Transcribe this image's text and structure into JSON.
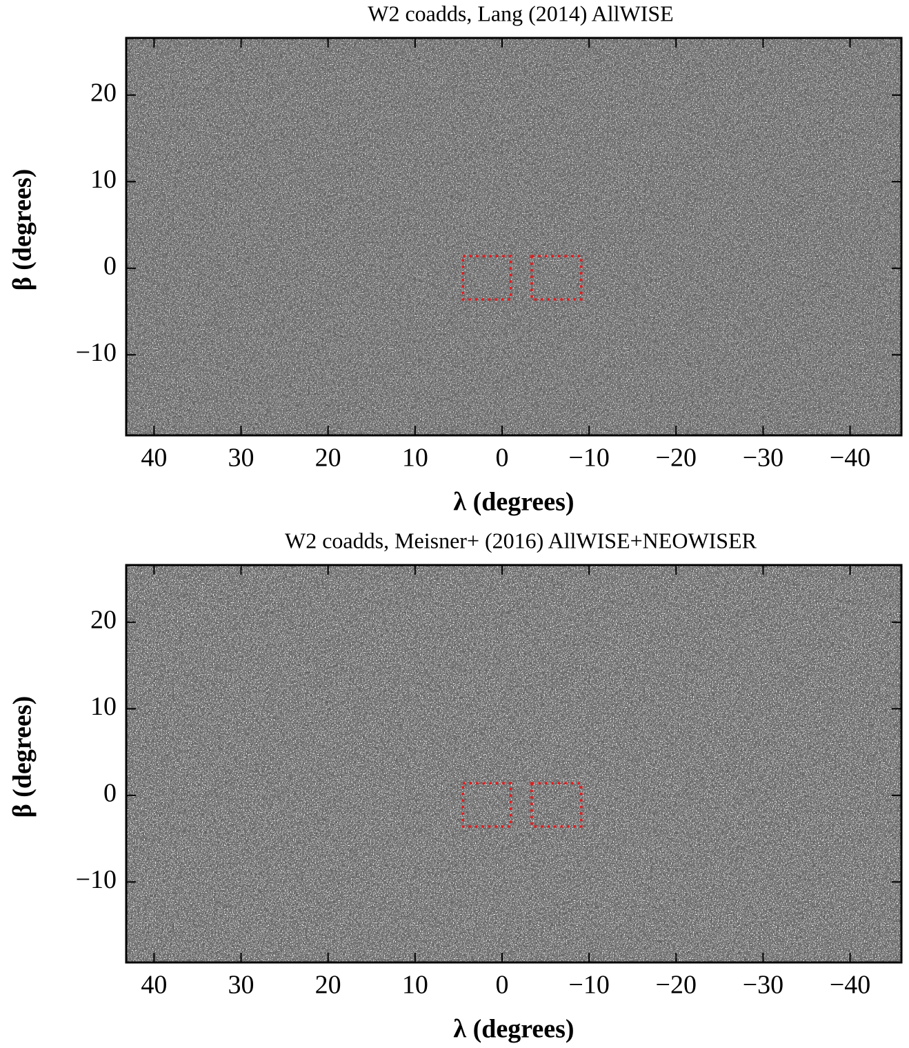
{
  "chart_data": [
    {
      "type": "image",
      "title": "W2 coadds, Lang (2014) AllWISE",
      "xlabel": "λ (degrees)",
      "ylabel": "β (degrees)",
      "xlim": [
        43.2,
        -45.9
      ],
      "ylim": [
        -19.3,
        26.6
      ],
      "xticks": [
        40,
        30,
        20,
        10,
        0,
        {
          "value": -10,
          "label": "−10"
        },
        {
          "value": -20,
          "label": "−20"
        },
        {
          "value": -30,
          "label": "−30"
        },
        {
          "value": -40,
          "label": "−40"
        }
      ],
      "yticks": [
        {
          "value": -10,
          "label": "−10"
        },
        0,
        10,
        20
      ],
      "region_color": "#e31a1c",
      "regions": [
        {
          "x": [
            4.5,
            -1.0
          ],
          "y": [
            -3.6,
            1.4
          ]
        },
        {
          "x": [
            -3.4,
            -9.1
          ],
          "y": [
            -3.6,
            1.4
          ]
        }
      ]
    },
    {
      "type": "image",
      "title": "W2 coadds, Meisner+ (2016) AllWISE+NEOWISER",
      "xlabel": "λ (degrees)",
      "ylabel": "β (degrees)",
      "xlim": [
        43.2,
        -45.9
      ],
      "ylim": [
        -19.3,
        26.6
      ],
      "xticks": [
        40,
        30,
        20,
        10,
        0,
        {
          "value": -10,
          "label": "−10"
        },
        {
          "value": -20,
          "label": "−20"
        },
        {
          "value": -30,
          "label": "−30"
        },
        {
          "value": -40,
          "label": "−40"
        }
      ],
      "yticks": [
        {
          "value": -10,
          "label": "−10"
        },
        0,
        10,
        20
      ],
      "region_color": "#e31a1c",
      "regions": [
        {
          "x": [
            4.5,
            -1.0
          ],
          "y": [
            -3.6,
            1.4
          ]
        },
        {
          "x": [
            -3.4,
            -9.1
          ],
          "y": [
            -3.6,
            1.4
          ]
        }
      ]
    }
  ]
}
